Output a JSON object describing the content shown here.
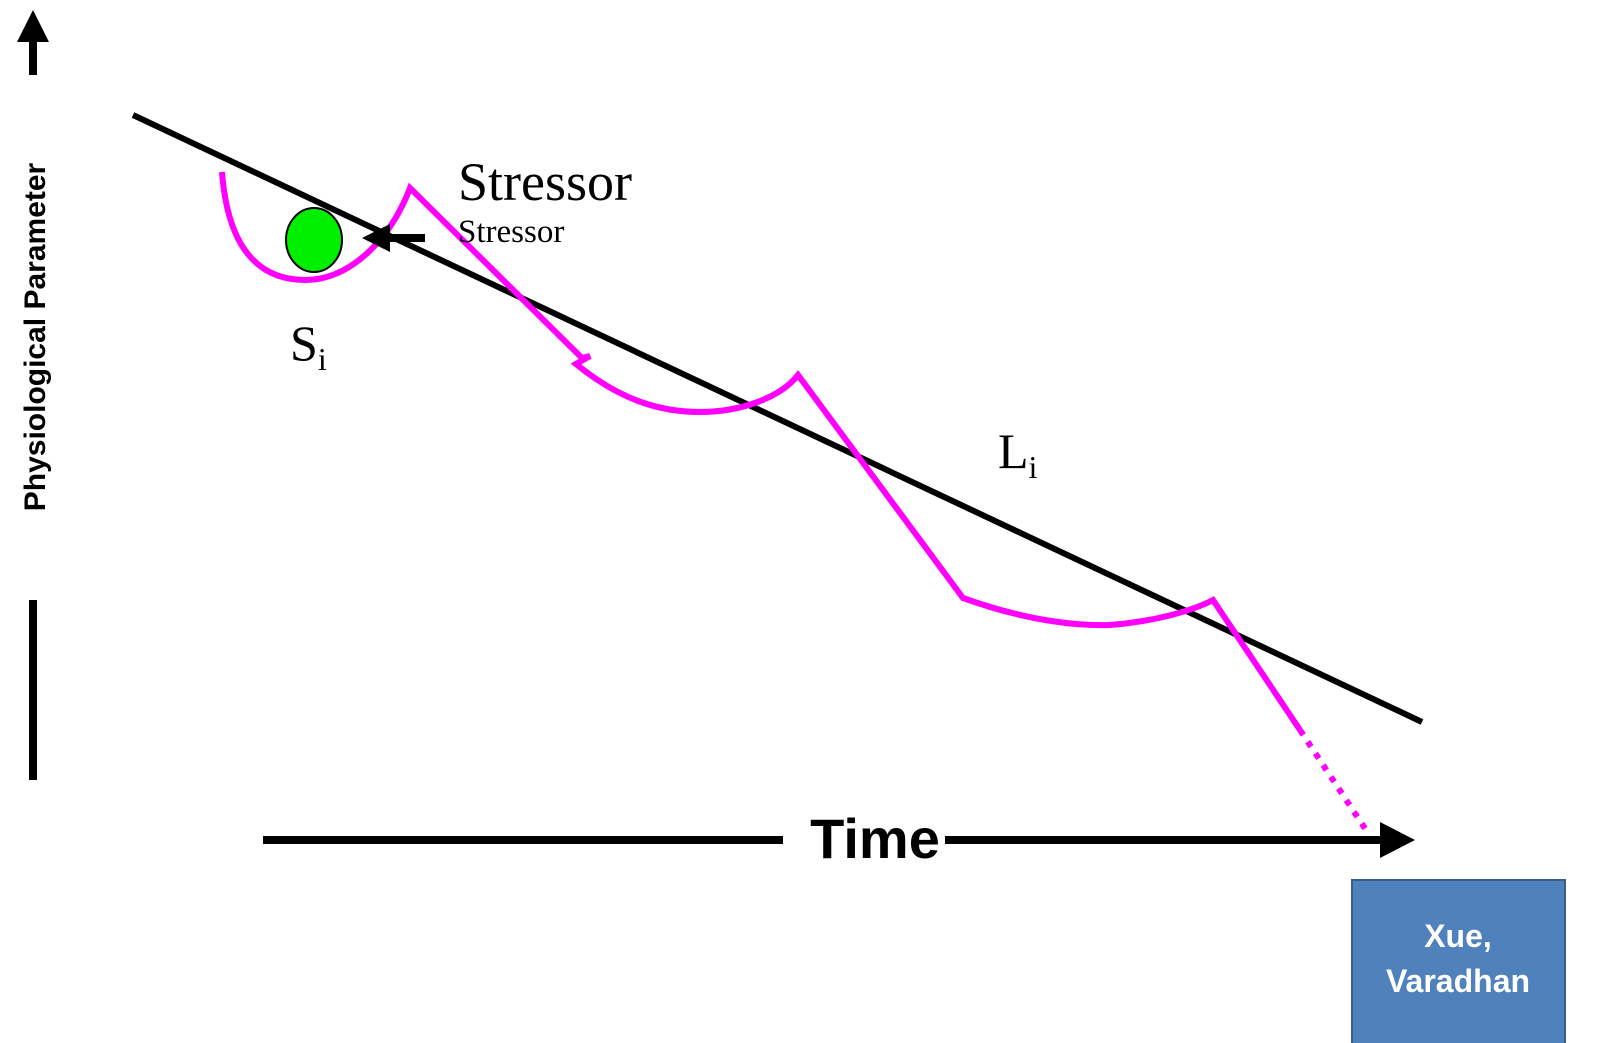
{
  "y_axis_label": "Physiological Parameter",
  "stressor_label": "Stressor",
  "stressor_sublabel": "Stressor",
  "s_label": {
    "base": "S",
    "subscript": "i"
  },
  "l_label": {
    "base": "L",
    "subscript": "i"
  },
  "x_axis_label": "Time",
  "credit": {
    "lines": [
      "Xue,",
      "Varadhan"
    ]
  }
}
